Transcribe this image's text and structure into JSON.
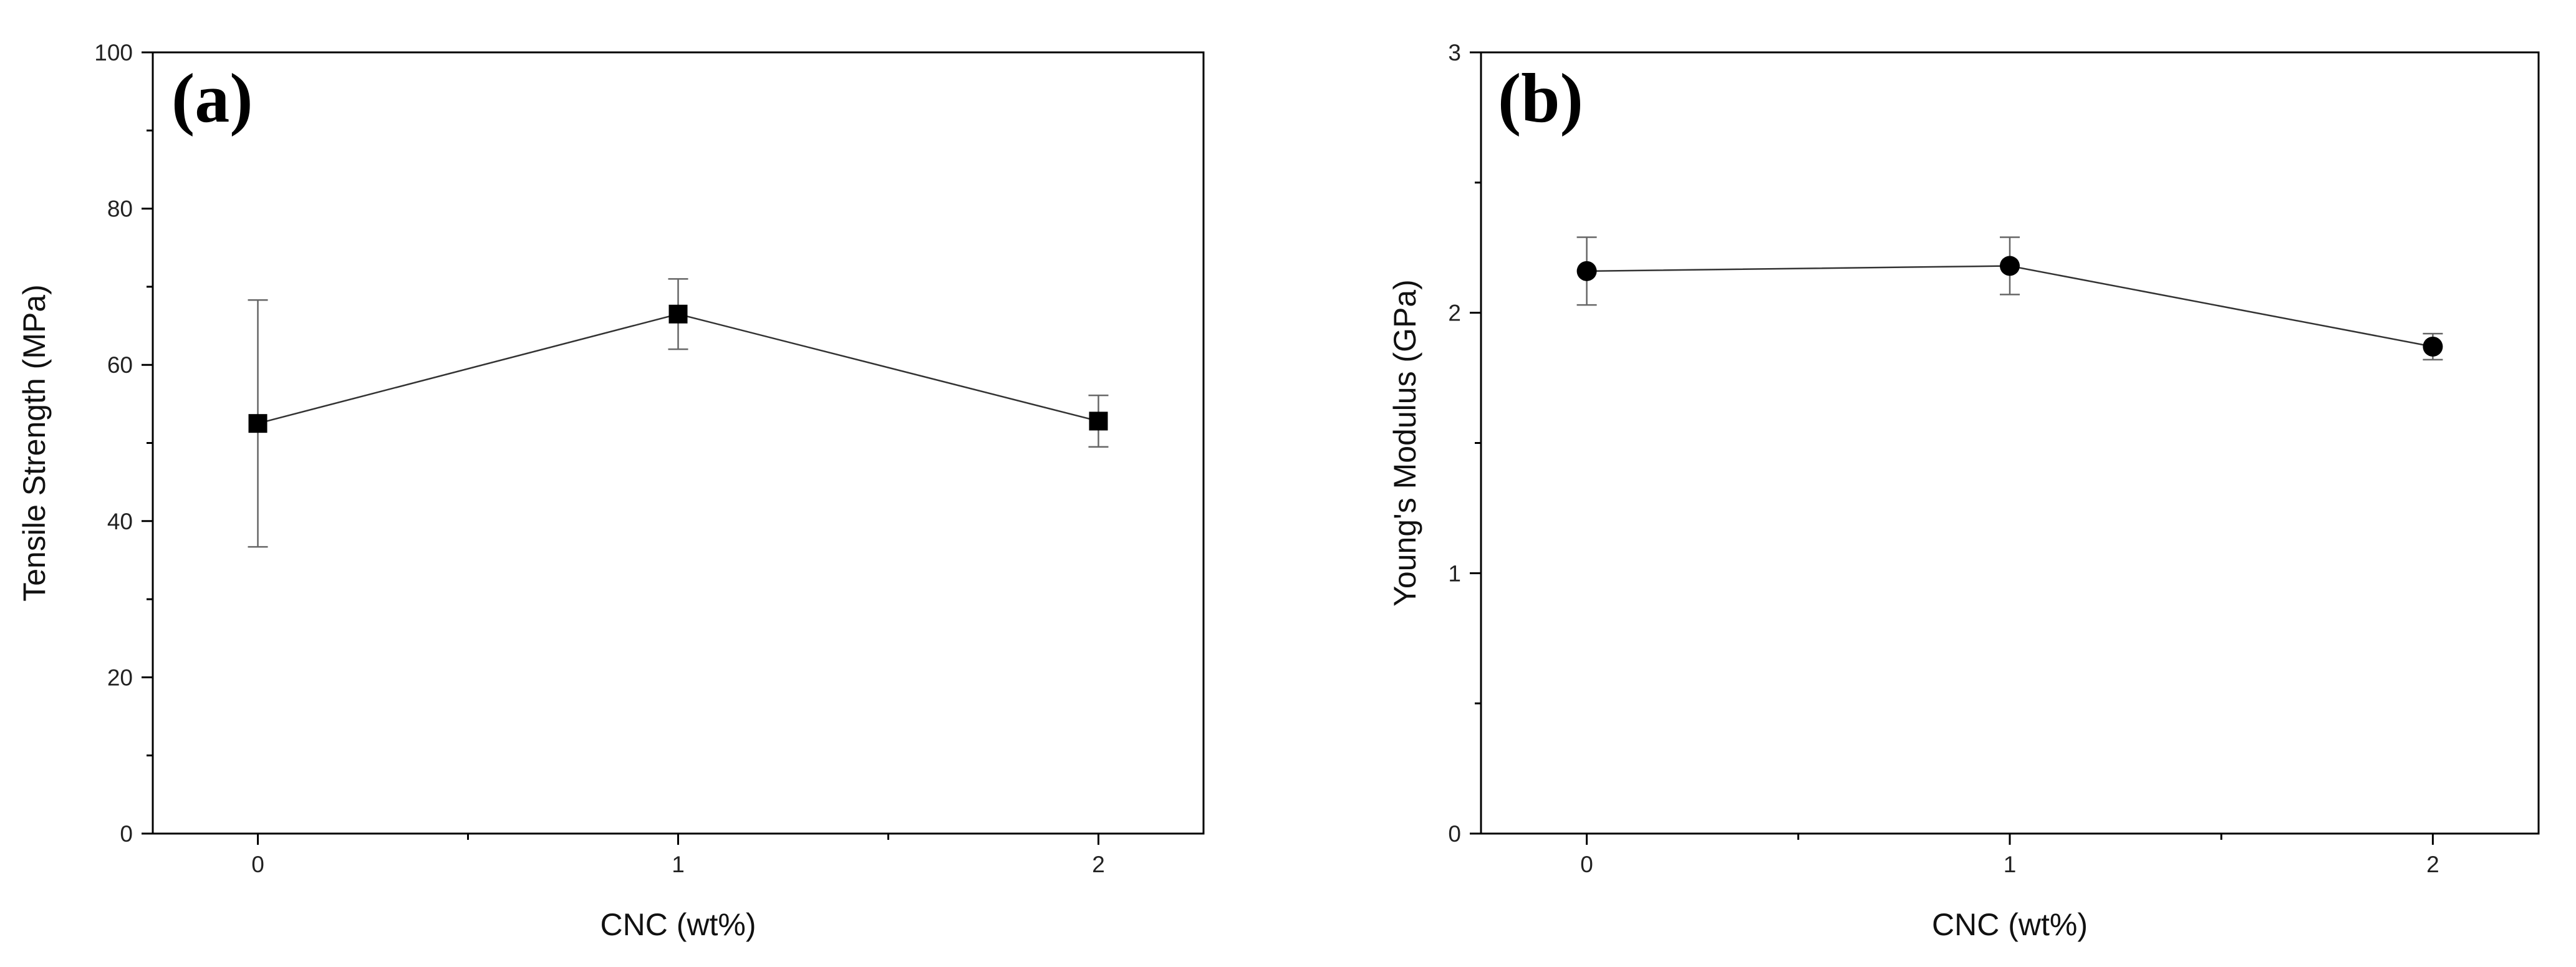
{
  "chart_data": [
    {
      "type": "line",
      "panel_label": "(a)",
      "xlabel": "CNC (wt%)",
      "ylabel": "Tensile Strength (MPa)",
      "xlim": [
        -0.25,
        2.25
      ],
      "ylim": [
        0,
        100
      ],
      "x_ticks": [
        0,
        1,
        2
      ],
      "y_ticks": [
        0,
        20,
        40,
        60,
        80,
        100
      ],
      "marker": "square",
      "grid": false,
      "series": [
        {
          "x": [
            0,
            1,
            2
          ],
          "y": [
            52.5,
            66.5,
            52.8
          ],
          "error": [
            15.8,
            4.5,
            3.3
          ]
        }
      ]
    },
    {
      "type": "line",
      "panel_label": "(b)",
      "xlabel": "CNC (wt%)",
      "ylabel": "Young's Modulus (GPa)",
      "xlim": [
        -0.25,
        2.25
      ],
      "ylim": [
        0,
        3
      ],
      "x_ticks": [
        0,
        1,
        2
      ],
      "y_ticks": [
        0,
        1,
        2,
        3
      ],
      "marker": "circle",
      "grid": false,
      "series": [
        {
          "x": [
            0,
            1,
            2
          ],
          "y": [
            2.16,
            2.18,
            1.87
          ],
          "error": [
            0.13,
            0.11,
            0.05
          ]
        }
      ]
    }
  ]
}
